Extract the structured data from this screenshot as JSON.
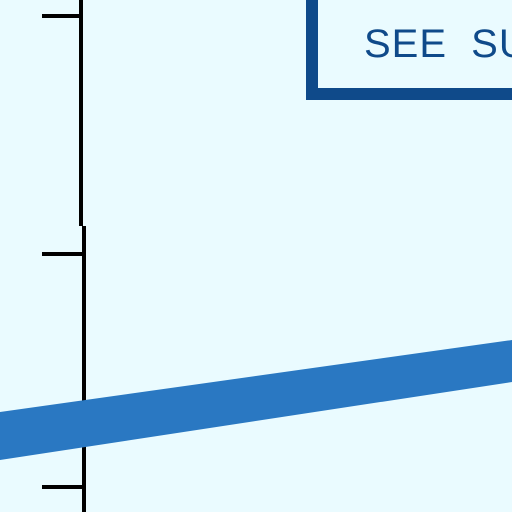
{
  "diagram": {
    "background_color": "#eafbff",
    "axis_color": "#000000",
    "line_color": "#2a78c2",
    "box_border_color": "#0f4a8a",
    "box_text_color": "#0f4a8a",
    "tick_count": 3
  },
  "label_box": {
    "text": "SEE  SU"
  }
}
